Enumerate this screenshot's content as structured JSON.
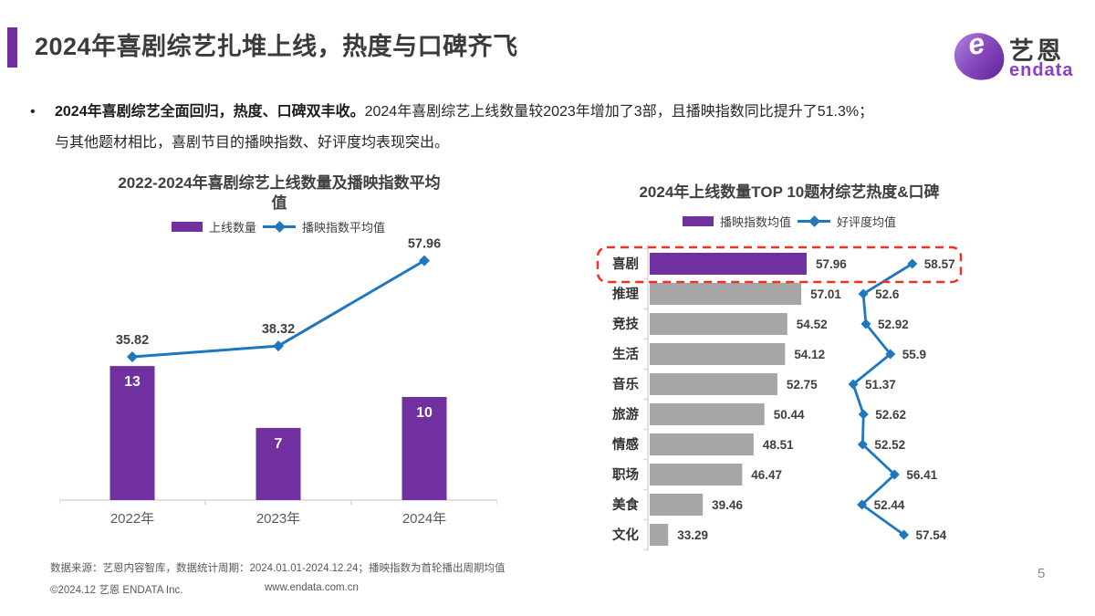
{
  "page": {
    "title": "2024年喜剧综艺扎堆上线，热度与口碑齐飞",
    "page_number": "5"
  },
  "logo": {
    "zh": "艺恩",
    "en": "endata",
    "mark_letter": "e"
  },
  "summary": {
    "bullet": "•",
    "lead_bold": "2024年喜剧综艺全面回归，热度、口碑双丰收。",
    "line1_rest": "2024年喜剧综艺上线数量较2023年增加了3部，且播映指数同比提升了51.3%；",
    "line2": "与其他题材相比，喜剧节目的播映指数、好评度均表现突出。"
  },
  "colors": {
    "purple": "#7030A0",
    "blue": "#1F77BE",
    "gray_bar": "#A6A6A6",
    "red_dash": "#ED3124",
    "axis": "#D9D9D9"
  },
  "chart_data": [
    {
      "id": "comedy-trend",
      "type": "bar+line",
      "title": "2022-2024年喜剧综艺上线数量及播映指数平均值",
      "categories": [
        "2022年",
        "2023年",
        "2024年"
      ],
      "series": [
        {
          "name": "上线数量",
          "type": "bar",
          "color": "#7030A0",
          "values": [
            13,
            7,
            10
          ]
        },
        {
          "name": "播映指数平均值",
          "type": "line",
          "color": "#1F77BE",
          "values": [
            35.82,
            38.32,
            57.96
          ]
        }
      ],
      "legend_position": "top",
      "grid": false
    },
    {
      "id": "top10-genres",
      "type": "horizontal-bar+line",
      "title": "2024年上线数量TOP 10题材综艺热度&口碑",
      "categories": [
        "喜剧",
        "推理",
        "竞技",
        "生活",
        "音乐",
        "旅游",
        "情感",
        "职场",
        "美食",
        "文化"
      ],
      "series": [
        {
          "name": "播映指数均值",
          "type": "bar",
          "values": [
            57.96,
            57.01,
            54.52,
            54.12,
            52.75,
            50.44,
            48.51,
            46.47,
            39.46,
            33.29
          ]
        },
        {
          "name": "好评度均值",
          "type": "line",
          "color": "#1F77BE",
          "values": [
            58.57,
            52.6,
            52.92,
            55.9,
            51.37,
            52.62,
            52.52,
            56.41,
            52.44,
            57.54
          ]
        }
      ],
      "highlight_category": "喜剧",
      "bar_colors": {
        "highlight": "#7030A0",
        "default": "#A6A6A6"
      },
      "legend_position": "top",
      "grid": false
    }
  ],
  "footer": {
    "source": "数据来源：艺恩内容智库，数据统计周期：2024.01.01-2024.12.24；播映指数为首轮播出周期均值",
    "copyright": "©2024.12 艺恩 ENDATA Inc.",
    "website": "www.endata.com.cn"
  }
}
